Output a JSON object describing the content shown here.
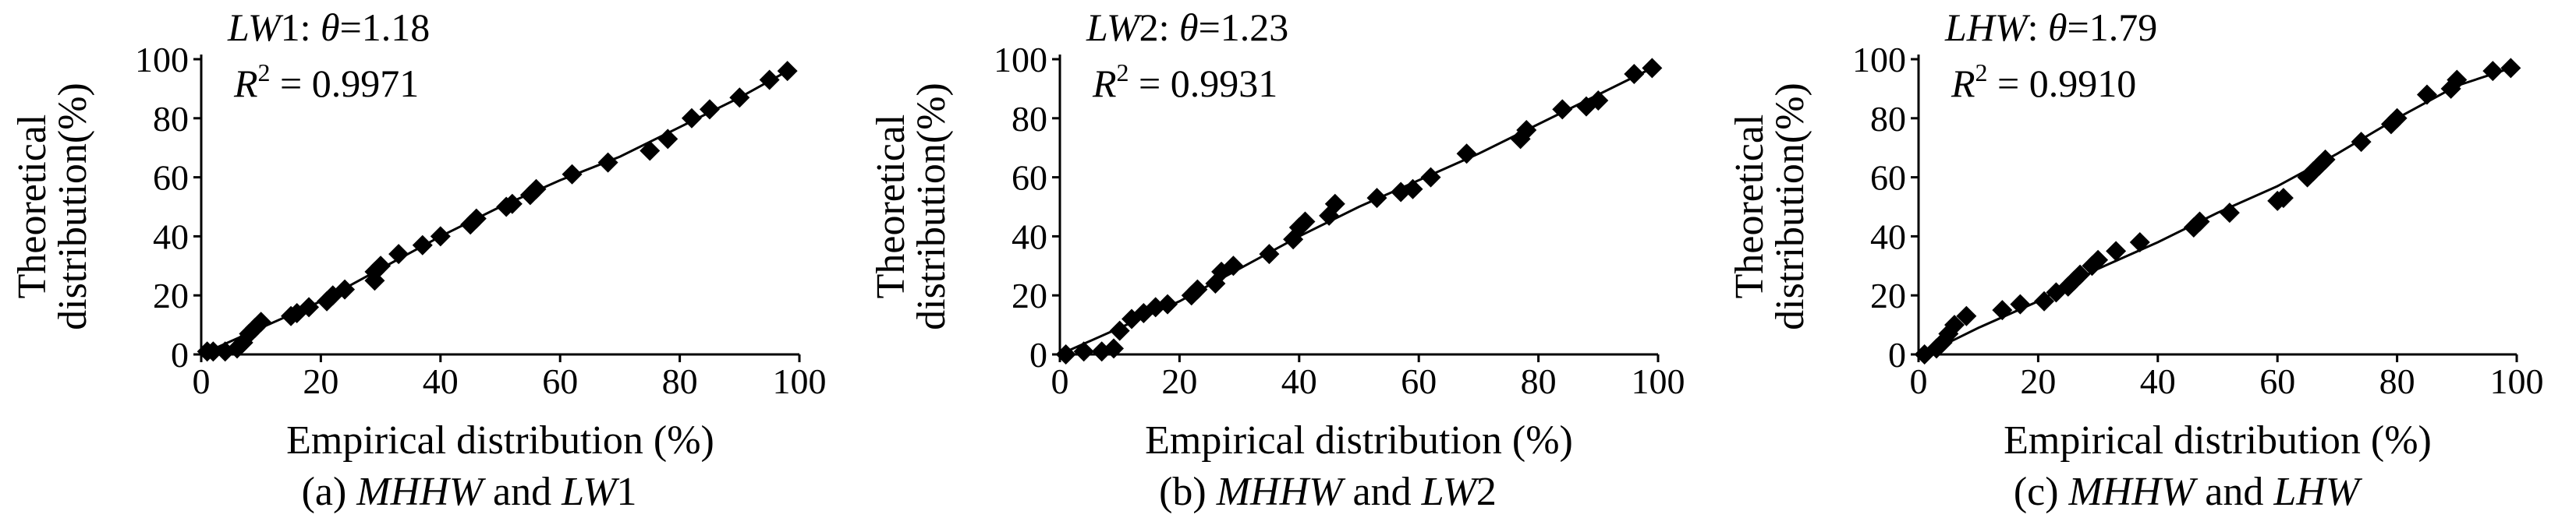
{
  "chart_data": [
    {
      "type": "scatter",
      "caption_label": "(a)",
      "caption_a": "MHHW",
      "caption_and": " and ",
      "caption_b": "LW",
      "caption_b_suffix": "1",
      "annotation": {
        "series_italic": "LW",
        "series_suffix": "1",
        "sep": ": ",
        "theta_symbol": "θ",
        "theta_value": "=1.18",
        "r2_symbol": "R",
        "r2_sup": "2",
        "r2_value": " = 0.9971"
      },
      "xlabel": "Empirical distribution (%)",
      "ylabel_line1": "Theoretical",
      "ylabel_line2": "distribution(%)",
      "xlim": [
        0,
        100
      ],
      "ylim": [
        0,
        100
      ],
      "xticks": [
        "0",
        "20",
        "40",
        "60",
        "80",
        "100"
      ],
      "yticks": [
        "0",
        "20",
        "40",
        "60",
        "80",
        "100"
      ],
      "points": [
        [
          1,
          1
        ],
        [
          2,
          1
        ],
        [
          4,
          1
        ],
        [
          6,
          2
        ],
        [
          7,
          4
        ],
        [
          8,
          7
        ],
        [
          9,
          9
        ],
        [
          10,
          11
        ],
        [
          15,
          13
        ],
        [
          16,
          14
        ],
        [
          18,
          16
        ],
        [
          21,
          18
        ],
        [
          22,
          20
        ],
        [
          24,
          22
        ],
        [
          29,
          25
        ],
        [
          29,
          28
        ],
        [
          30,
          30
        ],
        [
          33,
          34
        ],
        [
          37,
          37
        ],
        [
          40,
          40
        ],
        [
          45,
          44
        ],
        [
          46,
          46
        ],
        [
          51,
          50
        ],
        [
          52,
          51
        ],
        [
          55,
          54
        ],
        [
          56,
          56
        ],
        [
          62,
          61
        ],
        [
          68,
          65
        ],
        [
          75,
          69
        ],
        [
          78,
          73
        ],
        [
          82,
          80
        ],
        [
          85,
          83
        ],
        [
          90,
          87
        ],
        [
          95,
          93
        ],
        [
          98,
          96
        ]
      ],
      "fit": [
        [
          0,
          0
        ],
        [
          10,
          9
        ],
        [
          20,
          18
        ],
        [
          30,
          29
        ],
        [
          40,
          40
        ],
        [
          50,
          50
        ],
        [
          60,
          59
        ],
        [
          70,
          67
        ],
        [
          80,
          77
        ],
        [
          90,
          87
        ],
        [
          98,
          96
        ]
      ]
    },
    {
      "type": "scatter",
      "caption_label": "(b)",
      "caption_a": "MHHW",
      "caption_and": " and ",
      "caption_b": "LW",
      "caption_b_suffix": "2",
      "annotation": {
        "series_italic": "LW",
        "series_suffix": "2",
        "sep": ": ",
        "theta_symbol": "θ",
        "theta_value": "=1.23",
        "r2_symbol": "R",
        "r2_sup": "2",
        "r2_value": " = 0.9931"
      },
      "xlabel": "Empirical distribution (%)",
      "ylabel_line1": "Theoretical",
      "ylabel_line2": "distribution(%)",
      "xlim": [
        0,
        100
      ],
      "ylim": [
        0,
        100
      ],
      "xticks": [
        "0",
        "20",
        "40",
        "60",
        "80",
        "100"
      ],
      "yticks": [
        "0",
        "20",
        "40",
        "60",
        "80",
        "100"
      ],
      "points": [
        [
          1,
          0
        ],
        [
          4,
          1
        ],
        [
          7,
          1
        ],
        [
          9,
          2
        ],
        [
          10,
          8
        ],
        [
          12,
          12
        ],
        [
          14,
          14
        ],
        [
          16,
          16
        ],
        [
          18,
          17
        ],
        [
          22,
          20
        ],
        [
          23,
          22
        ],
        [
          26,
          24
        ],
        [
          27,
          28
        ],
        [
          29,
          30
        ],
        [
          35,
          34
        ],
        [
          39,
          39
        ],
        [
          40,
          43
        ],
        [
          41,
          45
        ],
        [
          45,
          47
        ],
        [
          46,
          51
        ],
        [
          53,
          53
        ],
        [
          57,
          55
        ],
        [
          59,
          56
        ],
        [
          62,
          60
        ],
        [
          68,
          68
        ],
        [
          77,
          73
        ],
        [
          78,
          76
        ],
        [
          84,
          83
        ],
        [
          88,
          84
        ],
        [
          90,
          86
        ],
        [
          96,
          95
        ],
        [
          99,
          97
        ]
      ],
      "fit": [
        [
          0,
          0
        ],
        [
          10,
          9
        ],
        [
          20,
          18
        ],
        [
          30,
          29
        ],
        [
          40,
          40
        ],
        [
          50,
          50
        ],
        [
          60,
          59
        ],
        [
          70,
          68
        ],
        [
          80,
          78
        ],
        [
          90,
          88
        ],
        [
          99,
          97
        ]
      ]
    },
    {
      "type": "scatter",
      "caption_label": "(c)",
      "caption_a": "MHHW",
      "caption_and": " and ",
      "caption_b": "LHW",
      "caption_b_suffix": "",
      "annotation": {
        "series_italic": "LHW",
        "series_suffix": "",
        "sep": ": ",
        "theta_symbol": "θ",
        "theta_value": "=1.79",
        "r2_symbol": "R",
        "r2_sup": "2",
        "r2_value": " = 0.9910"
      },
      "xlabel": "Empirical distribution (%)",
      "ylabel_line1": "Theoretical",
      "ylabel_line2": "distribution(%)",
      "xlim": [
        0,
        100
      ],
      "ylim": [
        0,
        100
      ],
      "xticks": [
        "0",
        "20",
        "40",
        "60",
        "80",
        "100"
      ],
      "yticks": [
        "0",
        "20",
        "40",
        "60",
        "80",
        "100"
      ],
      "points": [
        [
          1,
          0
        ],
        [
          3,
          2
        ],
        [
          4,
          4
        ],
        [
          5,
          7
        ],
        [
          6,
          10
        ],
        [
          8,
          13
        ],
        [
          14,
          15
        ],
        [
          17,
          17
        ],
        [
          21,
          18
        ],
        [
          23,
          21
        ],
        [
          25,
          23
        ],
        [
          26,
          25
        ],
        [
          27,
          27
        ],
        [
          29,
          30
        ],
        [
          30,
          32
        ],
        [
          33,
          35
        ],
        [
          37,
          38
        ],
        [
          46,
          43
        ],
        [
          47,
          45
        ],
        [
          52,
          48
        ],
        [
          60,
          52
        ],
        [
          61,
          53
        ],
        [
          65,
          60
        ],
        [
          66,
          62
        ],
        [
          67,
          64
        ],
        [
          68,
          66
        ],
        [
          74,
          72
        ],
        [
          79,
          78
        ],
        [
          80,
          80
        ],
        [
          85,
          88
        ],
        [
          89,
          90
        ],
        [
          90,
          93
        ],
        [
          96,
          96
        ],
        [
          99,
          97
        ]
      ],
      "fit": [
        [
          0,
          0
        ],
        [
          5,
          4
        ],
        [
          10,
          9
        ],
        [
          20,
          18
        ],
        [
          30,
          29
        ],
        [
          40,
          38
        ],
        [
          50,
          48
        ],
        [
          60,
          57
        ],
        [
          70,
          68
        ],
        [
          80,
          80
        ],
        [
          90,
          91
        ],
        [
          99,
          97
        ]
      ]
    }
  ]
}
